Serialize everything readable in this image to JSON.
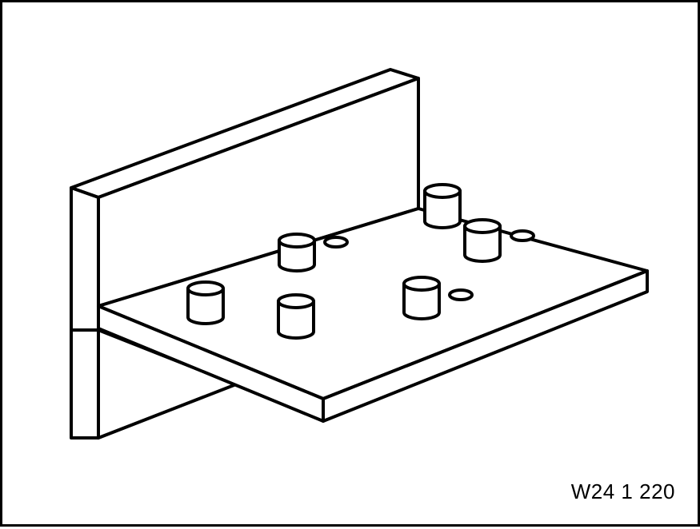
{
  "figure": {
    "reference_code": "W24 1 220",
    "subject": "bracket-fixture-with-locating-pins",
    "line_color": "#000000",
    "fill_color": "#ffffff"
  }
}
